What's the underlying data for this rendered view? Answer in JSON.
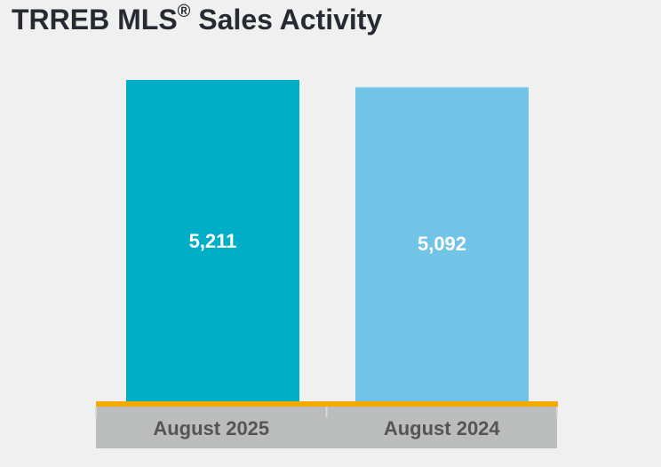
{
  "title": {
    "main": "TRREB MLS",
    "registered": "®",
    "suffix": " Sales Activity"
  },
  "colors": {
    "background": "#f0f0f0",
    "bar_2025": "#00aec7",
    "bar_2024": "#71c4e8",
    "axis_line": "#f2a900",
    "category_band": "#bbbcbc",
    "category_text": "#555555",
    "value_text": "#ffffff"
  },
  "chart_data": {
    "type": "bar",
    "title": "TRREB MLS® Sales Activity",
    "categories": [
      "August 2025",
      "August 2024"
    ],
    "values": [
      5211,
      5092
    ],
    "value_labels": [
      "5,211",
      "5,092"
    ],
    "xlabel": "",
    "ylabel": "",
    "ylim": [
      0,
      5211
    ],
    "grid": false,
    "legend": "none"
  }
}
